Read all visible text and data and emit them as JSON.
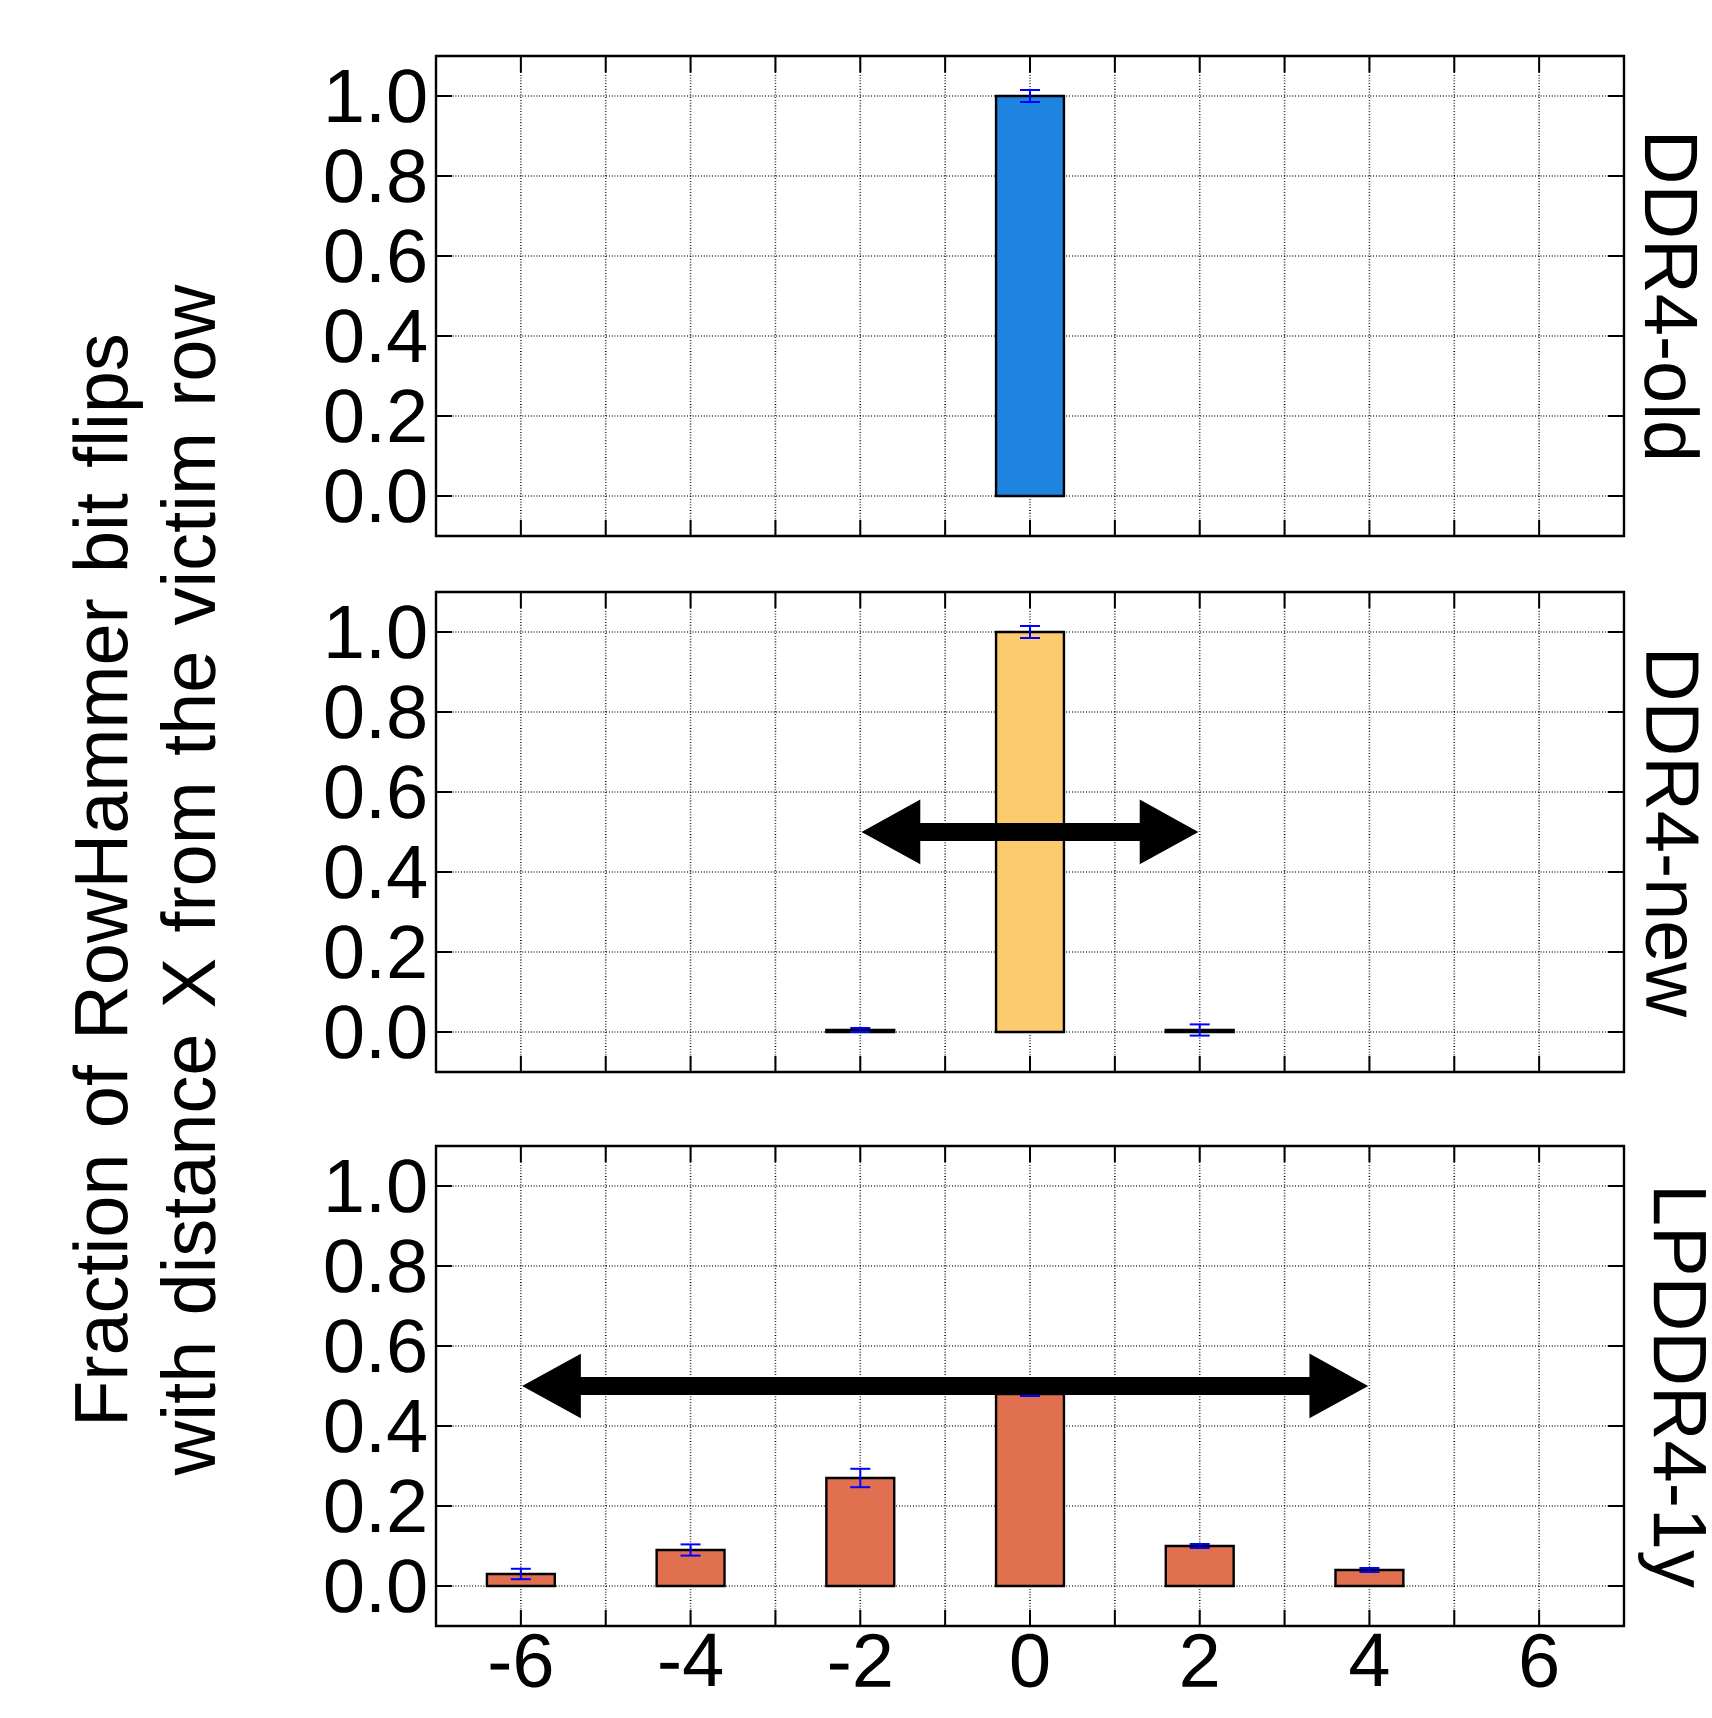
{
  "chart_data": [
    {
      "type": "bar",
      "title": "DDR4-old",
      "x": [
        0
      ],
      "values": [
        1.0
      ],
      "errors": [
        0.015
      ],
      "color": "#1f83e0",
      "xlim": [
        -7,
        7
      ],
      "xticks": [
        -6,
        {
          "value": -5,
          "label": null
        },
        -4,
        {
          "value": -3,
          "label": null
        },
        -2,
        {
          "value": -1,
          "label": null
        },
        0,
        {
          "value": 1,
          "label": null
        },
        2,
        {
          "value": 3,
          "label": null
        },
        4,
        {
          "value": 5,
          "label": null
        },
        6
      ],
      "ylim": [
        -0.1,
        1.1
      ],
      "yticks": [
        {
          "value": 0,
          "label": "0.0"
        },
        {
          "value": 0.2,
          "label": "0.2"
        },
        {
          "value": 0.4,
          "label": "0.4"
        },
        {
          "value": 0.6,
          "label": "0.6"
        },
        {
          "value": 0.8,
          "label": "0.8"
        },
        {
          "value": 1.0,
          "label": "1.0"
        }
      ],
      "grid": true,
      "tick_labels": "y"
    },
    {
      "type": "bar",
      "title": "DDR4-new",
      "ylabel": "Fraction of RowHammer bit flips with distance X from the victim row",
      "x": [
        -2,
        0,
        2
      ],
      "values": [
        0.005,
        1.0,
        0.005
      ],
      "errors": [
        0.005,
        0.015,
        0.014
      ],
      "color": "#fccb6e",
      "xlim": [
        -7,
        7
      ],
      "xticks": [
        -6,
        {
          "value": -5,
          "label": null
        },
        -4,
        {
          "value": -3,
          "label": null
        },
        -2,
        {
          "value": -1,
          "label": null
        },
        0,
        {
          "value": 1,
          "label": null
        },
        2,
        {
          "value": 3,
          "label": null
        },
        4,
        {
          "value": 5,
          "label": null
        },
        6
      ],
      "ylim": [
        -0.1,
        1.1
      ],
      "yticks": [
        {
          "value": 0,
          "label": "0.0"
        },
        {
          "value": 0.2,
          "label": "0.2"
        },
        {
          "value": 0.4,
          "label": "0.4"
        },
        {
          "value": 0.6,
          "label": "0.6"
        },
        {
          "value": 0.8,
          "label": "0.8"
        },
        {
          "value": 1.0,
          "label": "1.0"
        }
      ],
      "grid": true,
      "tick_labels": "y"
    },
    {
      "type": "bar",
      "title": "LPDDR4-1y",
      "x": [
        -6,
        -4,
        -2,
        0,
        2,
        4
      ],
      "values": [
        0.03,
        0.09,
        0.27,
        0.48,
        0.1,
        0.04
      ],
      "errors": [
        0.013,
        0.014,
        0.023,
        0.005,
        0.005,
        0.005
      ],
      "color": "#e07050",
      "xlim": [
        -7,
        7
      ],
      "xticks": [
        -6,
        {
          "value": -5,
          "label": null
        },
        -4,
        {
          "value": -3,
          "label": null
        },
        -2,
        {
          "value": -1,
          "label": null
        },
        0,
        {
          "value": 1,
          "label": null
        },
        2,
        {
          "value": 3,
          "label": null
        },
        4,
        {
          "value": 5,
          "label": null
        },
        6
      ],
      "ylim": [
        -0.1,
        1.1
      ],
      "yticks": [
        {
          "value": 0,
          "label": "0.0"
        },
        {
          "value": 0.2,
          "label": "0.2"
        },
        {
          "value": 0.4,
          "label": "0.4"
        },
        {
          "value": 0.6,
          "label": "0.6"
        },
        {
          "value": 0.8,
          "label": "0.8"
        },
        {
          "value": 1.0,
          "label": "1.0"
        }
      ],
      "grid": true
    }
  ]
}
